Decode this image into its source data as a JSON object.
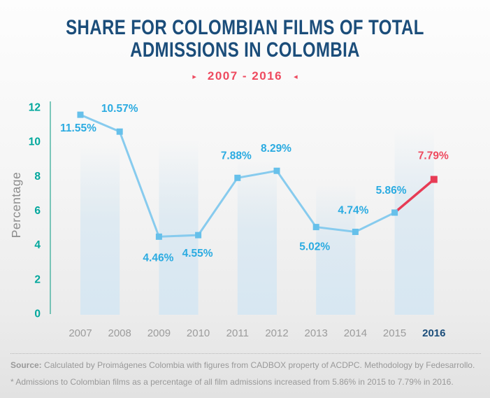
{
  "header": {
    "title_line1": "SHARE FOR COLOMBIAN FILMS OF TOTAL",
    "title_line2": "ADMISSIONS IN COLOMBIA",
    "subtitle": "2007 - 2016"
  },
  "icons": {
    "right_triangle": "▸",
    "left_triangle": "◂"
  },
  "chart_data": {
    "type": "line",
    "title": "Share for Colombian films of total admissions in Colombia",
    "subtitle": "2007 - 2016",
    "xlabel": "",
    "ylabel": "Percentage",
    "ylim": [
      0,
      12
    ],
    "yticks": [
      0,
      2,
      4,
      6,
      8,
      10,
      12
    ],
    "grid": false,
    "legend": false,
    "categories": [
      "2007",
      "2008",
      "2009",
      "2010",
      "2011",
      "2012",
      "2013",
      "2014",
      "2015",
      "2016"
    ],
    "values": [
      11.55,
      10.57,
      4.46,
      4.55,
      7.88,
      8.29,
      5.02,
      4.74,
      5.86,
      7.79
    ],
    "labels": [
      "11.55%",
      "10.57%",
      "4.46%",
      "4.55%",
      "7.88%",
      "8.29%",
      "5.02%",
      "4.74%",
      "5.86%",
      "7.79%"
    ],
    "highlight_last_point": true,
    "colors": {
      "line": "#87cbee",
      "marker": "#66c0ea",
      "value_label": "#2babe1",
      "highlight": "#e73b55",
      "highlight_label": "#ee4a5f",
      "axis": "#2aa791",
      "tick_label": "#00a79c",
      "ylabel": "#8c8c8c",
      "year_label": "#9c9c9c",
      "year_highlight": "#1b4d7a",
      "band": "#d7e7f2"
    }
  },
  "footer": {
    "source_label": "Source:",
    "source_text": " Calculated by Proimágenes Colombia with figures from CADBOX property of ACDPC. Methodology by Fedesarrollo.",
    "note_text": "* Admissions to Colombian films as a percentage of all film admissions increased from 5.86% in 2015 to 7.79% in 2016."
  }
}
